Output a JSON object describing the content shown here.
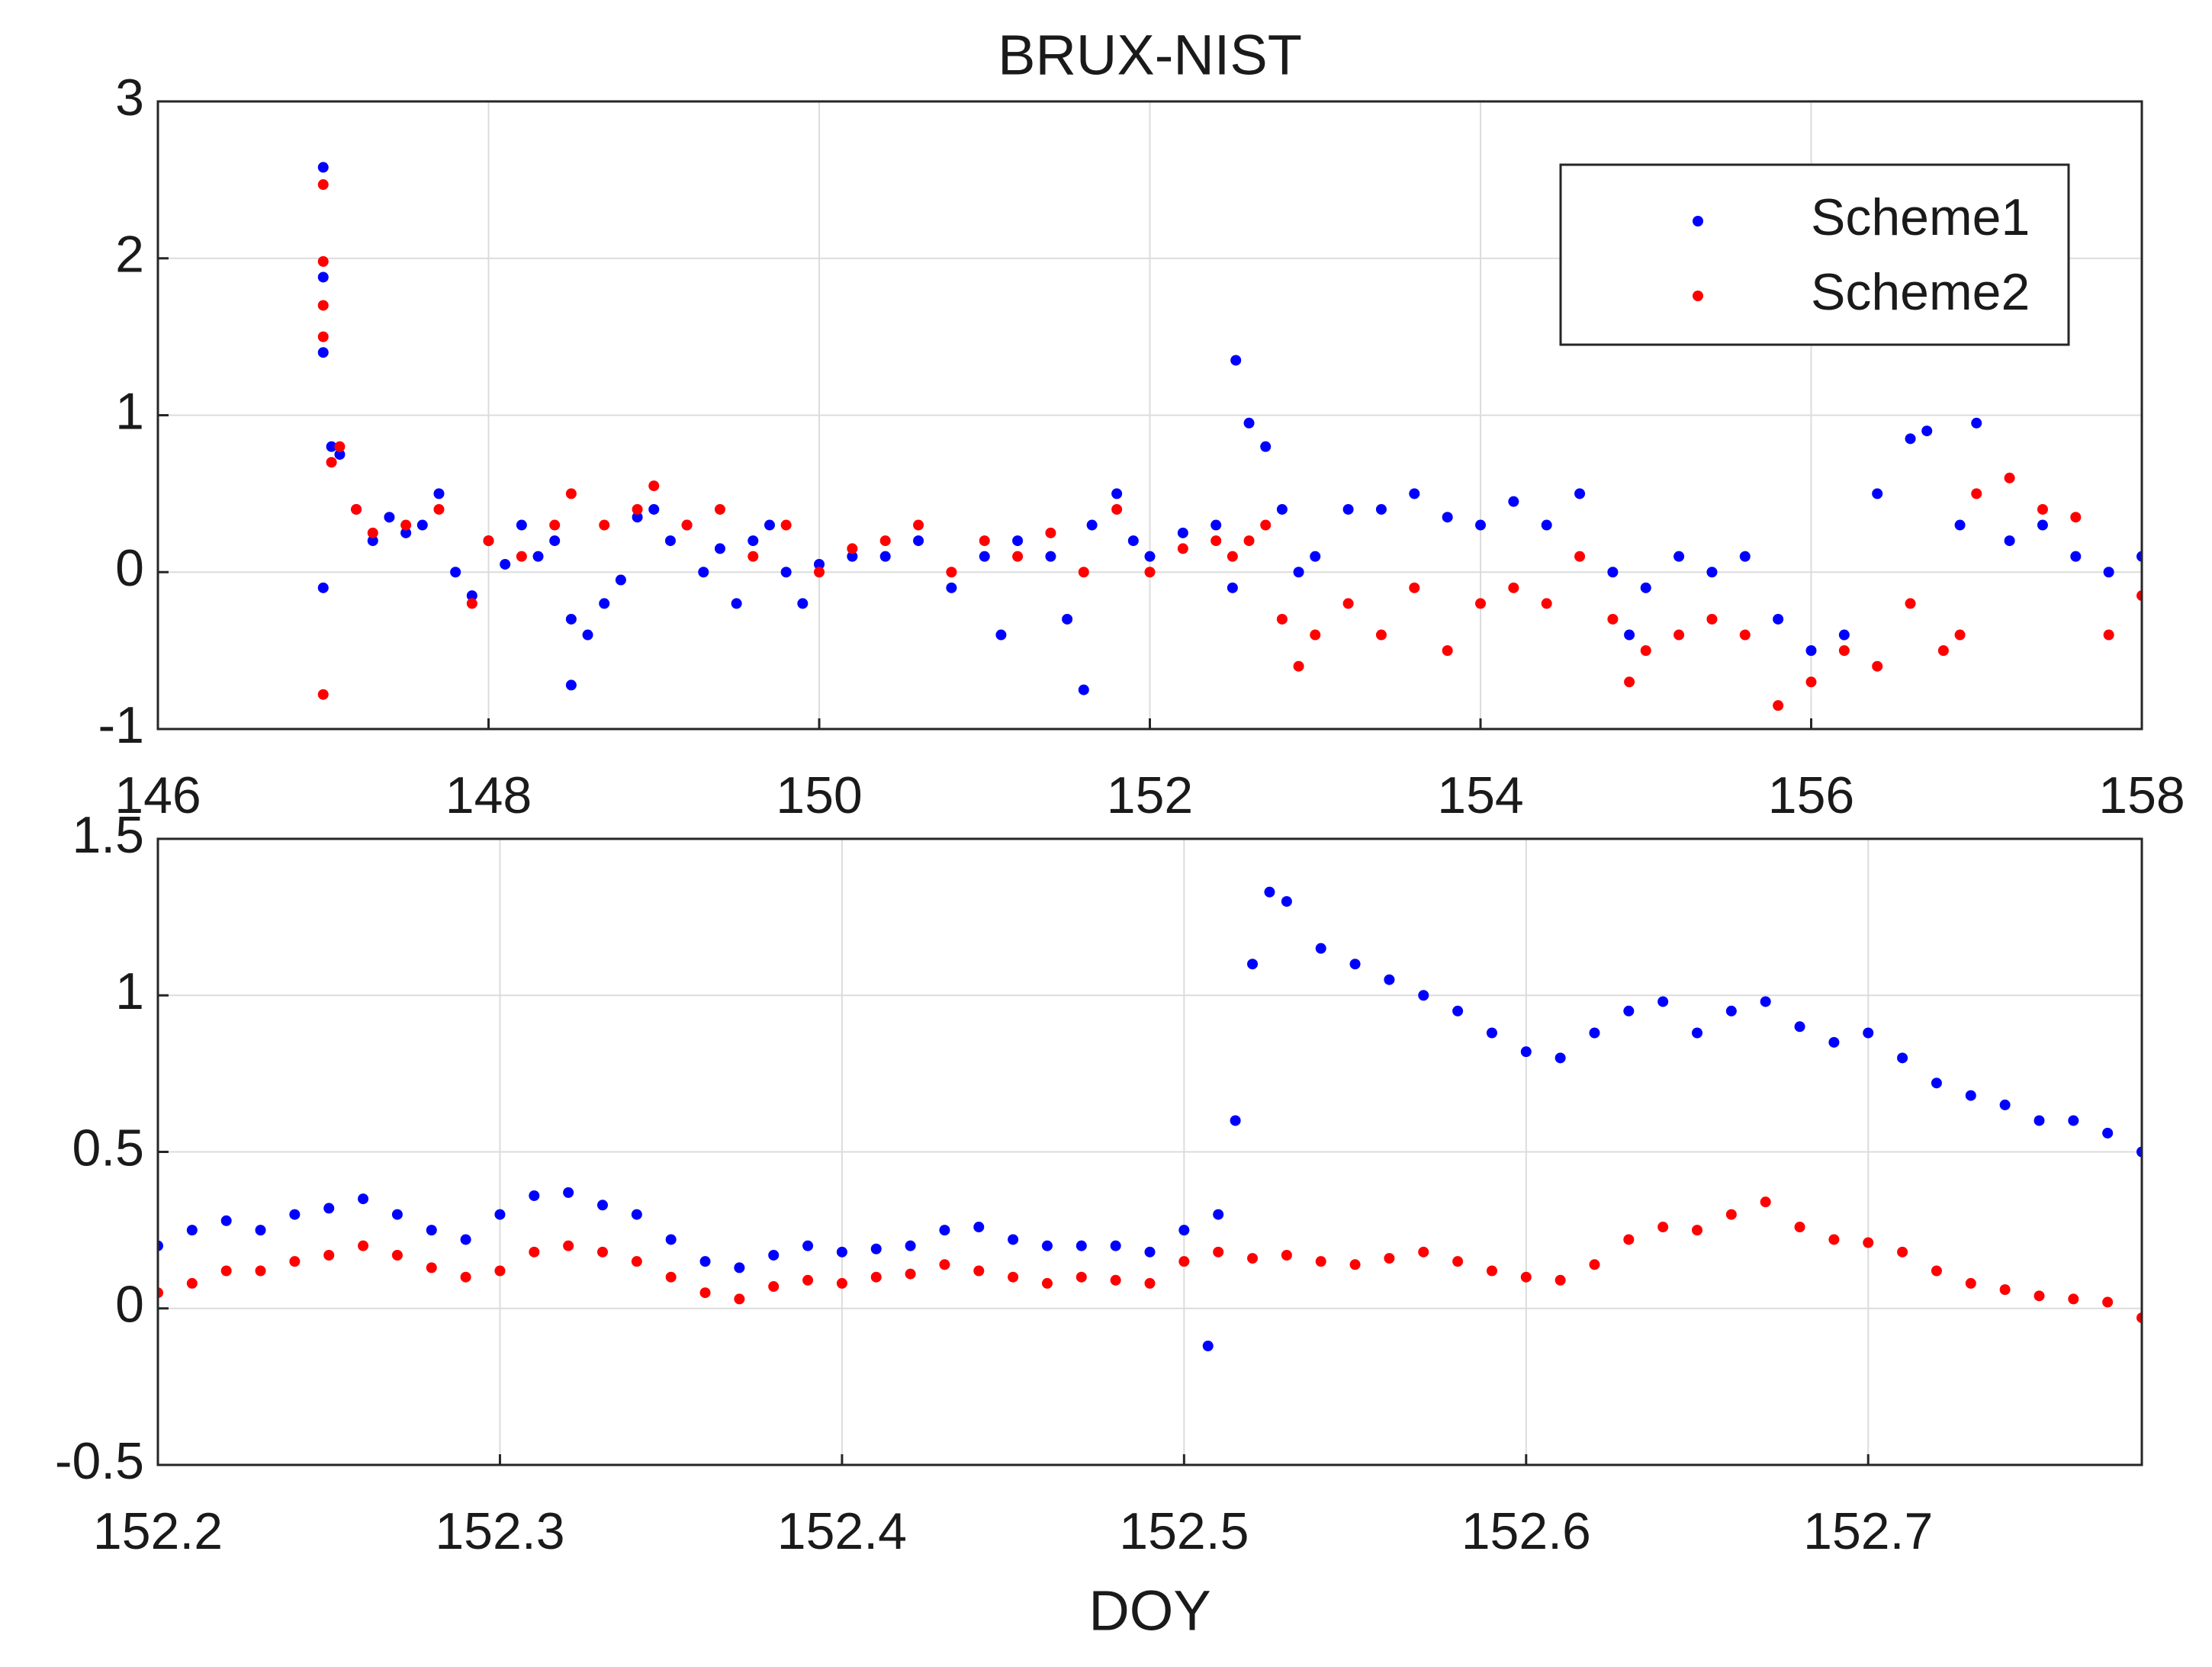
{
  "chart_data": [
    {
      "type": "scatter",
      "title": "BRUX-NIST",
      "xlim": [
        146,
        158
      ],
      "ylim": [
        -1,
        3
      ],
      "xticks": [
        146,
        148,
        150,
        152,
        154,
        156,
        158
      ],
      "yticks": [
        -1,
        0,
        1,
        2,
        3
      ],
      "grid": true,
      "legend": "upper right",
      "series": [
        {
          "name": "Scheme1",
          "color": "#0000ff",
          "x": [
            147.0,
            147.0,
            147.0,
            147.0,
            147.05,
            147.1,
            147.2,
            147.3,
            147.4,
            147.5,
            147.6,
            147.7,
            147.8,
            147.9,
            148.0,
            148.1,
            148.2,
            148.3,
            148.4,
            148.5,
            148.5,
            148.6,
            148.7,
            148.8,
            148.9,
            149.0,
            149.1,
            149.2,
            149.3,
            149.4,
            149.5,
            149.6,
            149.7,
            149.8,
            149.9,
            150.0,
            150.2,
            150.4,
            150.6,
            150.8,
            151.0,
            151.1,
            151.2,
            151.4,
            151.5,
            151.6,
            151.65,
            151.8,
            151.9,
            152.0,
            152.2,
            152.4,
            152.5,
            152.52,
            152.6,
            152.7,
            152.8,
            152.9,
            153.0,
            153.2,
            153.4,
            153.6,
            153.8,
            154.0,
            154.2,
            154.4,
            154.6,
            154.8,
            154.9,
            155.0,
            155.2,
            155.4,
            155.6,
            155.8,
            156.0,
            156.2,
            156.4,
            156.6,
            156.7,
            156.9,
            157.0,
            157.2,
            157.4,
            157.6,
            157.8,
            158.0
          ],
          "values": [
            2.58,
            1.88,
            1.4,
            -0.1,
            0.8,
            0.75,
            0.4,
            0.2,
            0.35,
            0.25,
            0.3,
            0.5,
            0.0,
            -0.15,
            0.2,
            0.05,
            0.3,
            0.1,
            0.2,
            -0.3,
            -0.72,
            -0.4,
            -0.2,
            -0.05,
            0.35,
            0.4,
            0.2,
            0.3,
            0.0,
            0.15,
            -0.2,
            0.2,
            0.3,
            0.0,
            -0.2,
            0.05,
            0.1,
            0.1,
            0.2,
            -0.1,
            0.1,
            -0.4,
            0.2,
            0.1,
            -0.3,
            -0.75,
            0.3,
            0.5,
            0.2,
            0.1,
            0.25,
            0.3,
            -0.1,
            1.35,
            0.95,
            0.8,
            0.4,
            0.0,
            0.1,
            0.4,
            0.4,
            0.5,
            0.35,
            0.3,
            0.45,
            0.3,
            0.5,
            0.0,
            -0.4,
            -0.1,
            0.1,
            0.0,
            0.1,
            -0.3,
            -0.5,
            -0.4,
            0.5,
            0.85,
            0.9,
            0.3,
            0.95,
            0.2,
            0.3,
            0.1,
            0.0,
            0.1
          ]
        },
        {
          "name": "Scheme2",
          "color": "#ff0000",
          "x": [
            147.0,
            147.0,
            147.0,
            147.0,
            147.0,
            147.05,
            147.1,
            147.2,
            147.3,
            147.5,
            147.7,
            147.9,
            148.0,
            148.2,
            148.4,
            148.5,
            148.7,
            148.9,
            149.0,
            149.2,
            149.4,
            149.6,
            149.8,
            150.0,
            150.2,
            150.4,
            150.6,
            150.8,
            151.0,
            151.2,
            151.4,
            151.6,
            151.8,
            152.0,
            152.2,
            152.4,
            152.5,
            152.6,
            152.7,
            152.8,
            152.9,
            153.0,
            153.2,
            153.4,
            153.6,
            153.8,
            154.0,
            154.2,
            154.4,
            154.6,
            154.8,
            154.9,
            155.0,
            155.2,
            155.4,
            155.6,
            155.8,
            156.0,
            156.2,
            156.4,
            156.6,
            156.8,
            156.9,
            157.0,
            157.2,
            157.4,
            157.6,
            157.8,
            158.0
          ],
          "values": [
            2.47,
            1.98,
            1.7,
            1.5,
            -0.78,
            0.7,
            0.8,
            0.4,
            0.25,
            0.3,
            0.4,
            -0.2,
            0.2,
            0.1,
            0.3,
            0.5,
            0.3,
            0.4,
            0.55,
            0.3,
            0.4,
            0.1,
            0.3,
            0.0,
            0.15,
            0.2,
            0.3,
            0.0,
            0.2,
            0.1,
            0.25,
            0.0,
            0.4,
            0.0,
            0.15,
            0.2,
            0.1,
            0.2,
            0.3,
            -0.3,
            -0.6,
            -0.4,
            -0.2,
            -0.4,
            -0.1,
            -0.5,
            -0.2,
            -0.1,
            -0.2,
            0.1,
            -0.3,
            -0.7,
            -0.5,
            -0.4,
            -0.3,
            -0.4,
            -0.85,
            -0.7,
            -0.5,
            -0.6,
            -0.2,
            -0.5,
            -0.4,
            0.5,
            0.6,
            0.4,
            0.35,
            -0.4,
            -0.15
          ]
        }
      ]
    },
    {
      "type": "scatter",
      "x_label": "DOY",
      "xlim": [
        152.2,
        152.78
      ],
      "ylim": [
        -0.5,
        1.5
      ],
      "xticks": [
        152.2,
        152.3,
        152.4,
        152.5,
        152.6,
        152.7
      ],
      "yticks": [
        -0.5,
        0,
        0.5,
        1,
        1.5
      ],
      "grid": true,
      "series": [
        {
          "name": "Scheme1",
          "color": "#0000ff",
          "x": [
            152.2,
            152.21,
            152.22,
            152.23,
            152.24,
            152.25,
            152.26,
            152.27,
            152.28,
            152.29,
            152.3,
            152.31,
            152.32,
            152.33,
            152.34,
            152.35,
            152.36,
            152.37,
            152.38,
            152.39,
            152.4,
            152.41,
            152.42,
            152.43,
            152.44,
            152.45,
            152.46,
            152.47,
            152.48,
            152.49,
            152.5,
            152.507,
            152.51,
            152.515,
            152.52,
            152.525,
            152.53,
            152.54,
            152.55,
            152.56,
            152.57,
            152.58,
            152.59,
            152.6,
            152.61,
            152.62,
            152.63,
            152.64,
            152.65,
            152.66,
            152.67,
            152.68,
            152.69,
            152.7,
            152.71,
            152.72,
            152.73,
            152.74,
            152.75,
            152.76,
            152.77,
            152.78
          ],
          "values": [
            0.2,
            0.25,
            0.28,
            0.25,
            0.3,
            0.32,
            0.35,
            0.3,
            0.25,
            0.22,
            0.3,
            0.36,
            0.37,
            0.33,
            0.3,
            0.22,
            0.15,
            0.13,
            0.17,
            0.2,
            0.18,
            0.19,
            0.2,
            0.25,
            0.26,
            0.22,
            0.2,
            0.2,
            0.2,
            0.18,
            0.25,
            -0.12,
            0.3,
            0.6,
            1.1,
            1.33,
            1.3,
            1.15,
            1.1,
            1.05,
            1.0,
            0.95,
            0.88,
            0.82,
            0.8,
            0.88,
            0.95,
            0.98,
            0.88,
            0.95,
            0.98,
            0.9,
            0.85,
            0.88,
            0.8,
            0.72,
            0.68,
            0.65,
            0.6,
            0.6,
            0.56,
            0.5
          ]
        },
        {
          "name": "Scheme2",
          "color": "#ff0000",
          "x": [
            152.2,
            152.21,
            152.22,
            152.23,
            152.24,
            152.25,
            152.26,
            152.27,
            152.28,
            152.29,
            152.3,
            152.31,
            152.32,
            152.33,
            152.34,
            152.35,
            152.36,
            152.37,
            152.38,
            152.39,
            152.4,
            152.41,
            152.42,
            152.43,
            152.44,
            152.45,
            152.46,
            152.47,
            152.48,
            152.49,
            152.5,
            152.51,
            152.52,
            152.53,
            152.54,
            152.55,
            152.56,
            152.57,
            152.58,
            152.59,
            152.6,
            152.61,
            152.62,
            152.63,
            152.64,
            152.65,
            152.66,
            152.67,
            152.68,
            152.69,
            152.7,
            152.71,
            152.72,
            152.73,
            152.74,
            152.75,
            152.76,
            152.77,
            152.78
          ],
          "values": [
            0.05,
            0.08,
            0.12,
            0.12,
            0.15,
            0.17,
            0.2,
            0.17,
            0.13,
            0.1,
            0.12,
            0.18,
            0.2,
            0.18,
            0.15,
            0.1,
            0.05,
            0.03,
            0.07,
            0.09,
            0.08,
            0.1,
            0.11,
            0.14,
            0.12,
            0.1,
            0.08,
            0.1,
            0.09,
            0.08,
            0.15,
            0.18,
            0.16,
            0.17,
            0.15,
            0.14,
            0.16,
            0.18,
            0.15,
            0.12,
            0.1,
            0.09,
            0.14,
            0.22,
            0.26,
            0.25,
            0.3,
            0.34,
            0.26,
            0.22,
            0.21,
            0.18,
            0.12,
            0.08,
            0.06,
            0.04,
            0.03,
            0.02,
            -0.03
          ]
        }
      ]
    }
  ]
}
